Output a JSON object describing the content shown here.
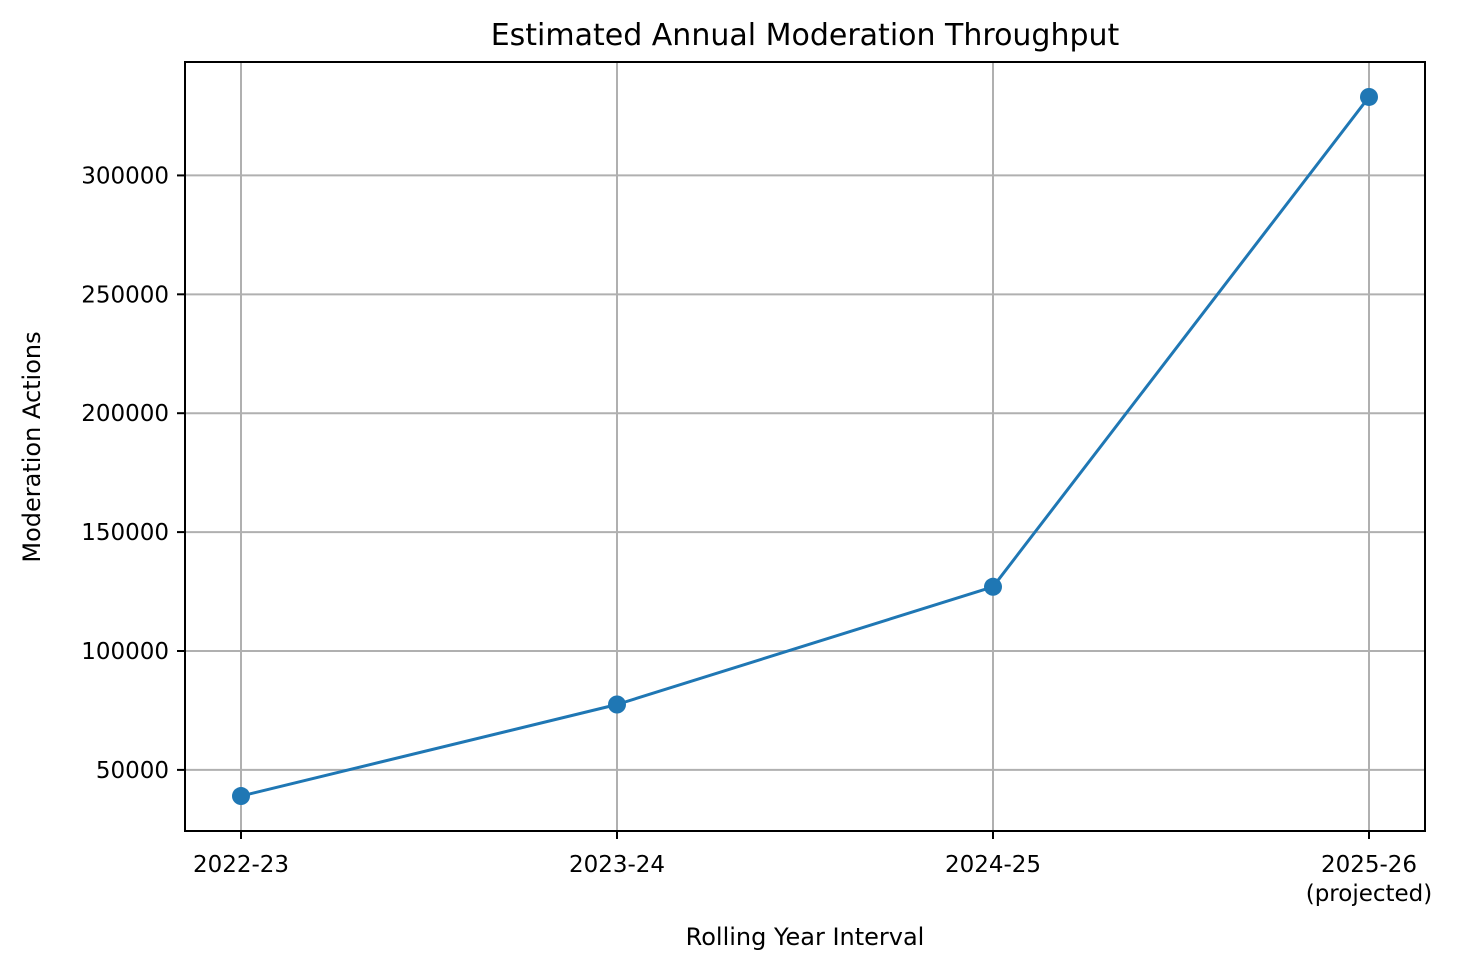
{
  "chart_data": {
    "type": "line",
    "title": "Estimated Annual Moderation Throughput",
    "xlabel": "Rolling Year Interval",
    "ylabel": "Moderation Actions",
    "categories": [
      "2022-23",
      "2023-24",
      "2024-25",
      "2025-26\n(projected)"
    ],
    "series": [
      {
        "values": [
          39000,
          77500,
          127000,
          333000
        ],
        "color": "#1f77b4",
        "marker": "circle"
      }
    ],
    "ylim": [
      24300,
      347700
    ],
    "y_ticks": [
      50000,
      100000,
      150000,
      200000,
      250000,
      300000
    ],
    "y_tick_labels": [
      "50000",
      "100000",
      "150000",
      "200000",
      "250000",
      "300000"
    ],
    "grid": true,
    "legend": false
  }
}
